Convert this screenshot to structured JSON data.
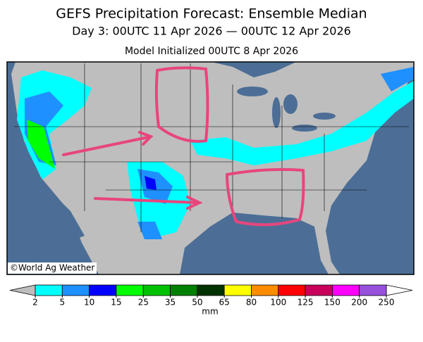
{
  "header": {
    "title": "GEFS Precipitation Forecast: Ensemble Median",
    "subtitle": "Day 3: 00UTC 11 Apr 2026 — 00UTC 12 Apr 2026",
    "initialized": "Model Initialized 00UTC 8 Apr 2026"
  },
  "map": {
    "credit": "©World Ag Weather"
  },
  "colorbar": {
    "ticks": [
      2,
      5,
      10,
      15,
      25,
      35,
      50,
      65,
      80,
      100,
      125,
      150,
      200,
      250
    ],
    "colors": [
      "#00ffff",
      "#1e90ff",
      "#0000ff",
      "#00ff00",
      "#00c000",
      "#008000",
      "#003200",
      "#ffff00",
      "#ff8c00",
      "#ff0000",
      "#c8005a",
      "#ff00ff",
      "#9650dc"
    ],
    "under_color": "#bebebe",
    "over_color": "#ffffff",
    "unit": "mm"
  }
}
